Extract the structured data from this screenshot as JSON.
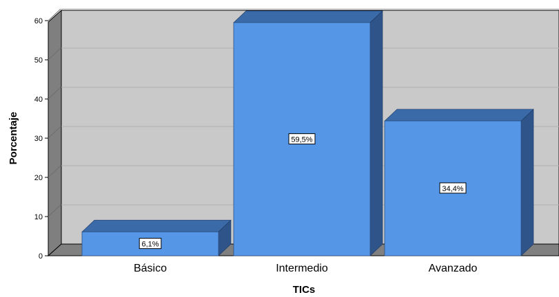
{
  "chart_data": {
    "type": "bar",
    "categories": [
      "Básico",
      "Intermedio",
      "Avanzado"
    ],
    "values": [
      6.1,
      59.5,
      34.4
    ],
    "data_labels": [
      "6,1%",
      "59,5%",
      "34,4%"
    ],
    "xlabel": "TICs",
    "ylabel": "Porcentaje",
    "ylim": [
      0,
      60
    ],
    "yticks": [
      0,
      10,
      20,
      30,
      40,
      50,
      60
    ],
    "grid": true,
    "three_d": true
  },
  "colors": {
    "bar_front": "#5596e6",
    "bar_top": "#3a6aa8",
    "bar_side": "#2e548a",
    "plot_background": "#c9c9c9",
    "left_wall": "#7f7f7f",
    "floor": "#808080"
  }
}
